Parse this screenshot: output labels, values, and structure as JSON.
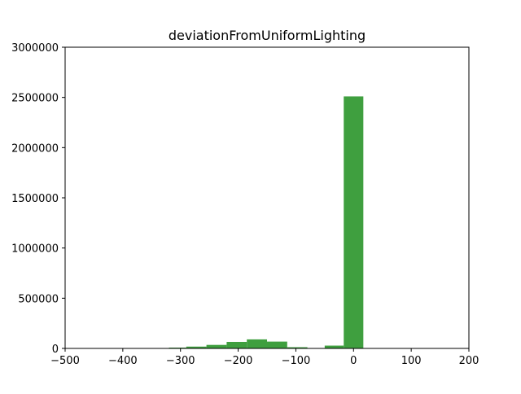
{
  "chart_data": {
    "type": "bar",
    "title": "deviationFromUniformLighting",
    "xlabel": "",
    "ylabel": "",
    "xlim": [
      -500,
      200
    ],
    "ylim": [
      0,
      3000000
    ],
    "x_ticks": [
      -500,
      -400,
      -300,
      -200,
      -100,
      0,
      100,
      200
    ],
    "x_tick_labels": [
      "−500",
      "−400",
      "−300",
      "−200",
      "−100",
      "0",
      "100",
      "200"
    ],
    "y_ticks": [
      0,
      500000,
      1000000,
      1500000,
      2000000,
      2500000,
      3000000
    ],
    "y_tick_labels": [
      "0",
      "500000",
      "1000000",
      "1500000",
      "2000000",
      "2500000",
      "3000000"
    ],
    "grid": false,
    "legend": "none",
    "bar_color": "#3f9f3f",
    "bins": [
      {
        "x0": -320,
        "x1": -290,
        "count": 8000
      },
      {
        "x0": -290,
        "x1": -255,
        "count": 18000
      },
      {
        "x0": -255,
        "x1": -220,
        "count": 35000
      },
      {
        "x0": -220,
        "x1": -185,
        "count": 65000
      },
      {
        "x0": -185,
        "x1": -150,
        "count": 90000
      },
      {
        "x0": -150,
        "x1": -115,
        "count": 68000
      },
      {
        "x0": -115,
        "x1": -80,
        "count": 12000
      },
      {
        "x0": -50,
        "x1": -17,
        "count": 28000
      },
      {
        "x0": -17,
        "x1": 17,
        "count": 2510000
      }
    ]
  }
}
